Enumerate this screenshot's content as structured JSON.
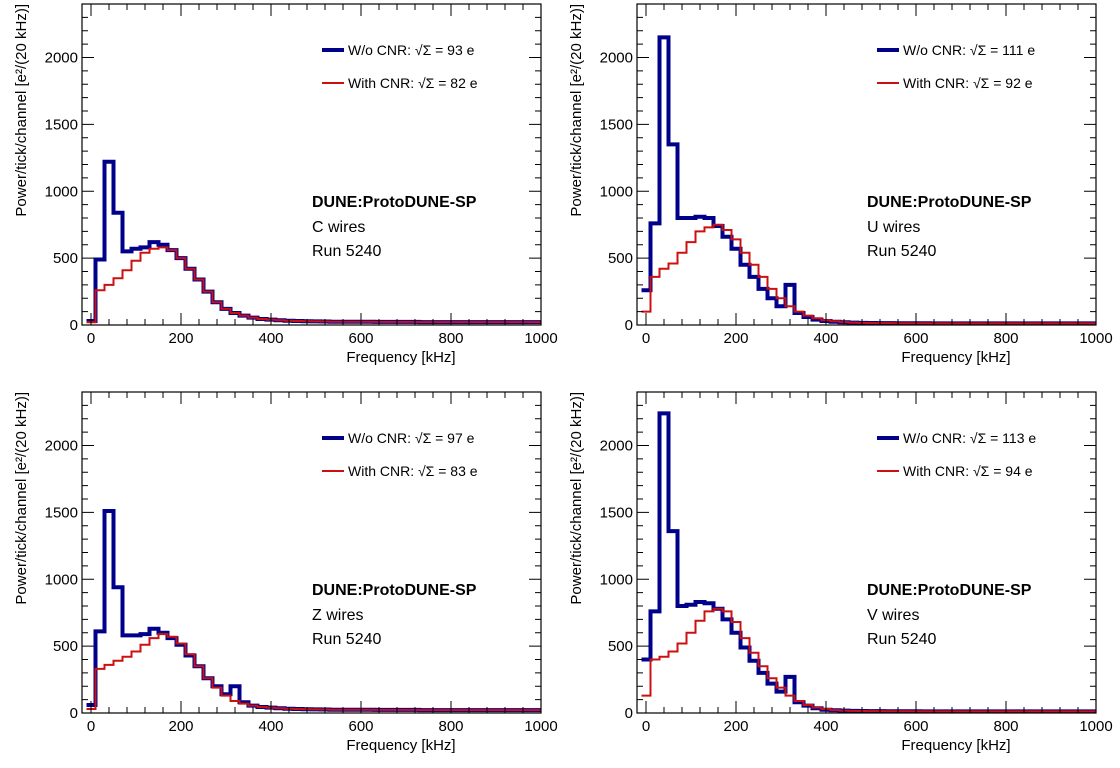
{
  "chart_data": [
    {
      "type": "line",
      "step": true,
      "experiment_label": "DUNE:ProtoDUNE-SP",
      "plane_label": "C wires",
      "run_label": "Run 5240",
      "xlabel": "Frequency [kHz]",
      "ylabel": "Power/tick/channel [e²/(20 kHz)]",
      "xlim": [
        -20,
        1000
      ],
      "ylim": [
        0,
        2400
      ],
      "xticks": [
        0,
        200,
        400,
        600,
        800,
        1000
      ],
      "yticks": [
        0,
        500,
        1000,
        1500,
        2000
      ],
      "bin_width": 20,
      "series": [
        {
          "name": "W/o CNR: √Σ = 93 e",
          "color": "#00008b",
          "values": [
            30,
            490,
            1220,
            840,
            550,
            570,
            580,
            620,
            600,
            560,
            500,
            420,
            340,
            250,
            170,
            120,
            90,
            70,
            55,
            45,
            40,
            35,
            32,
            30,
            28,
            27,
            26,
            25,
            25,
            24,
            24,
            24,
            23,
            23,
            23,
            23,
            23,
            22,
            22,
            22,
            22,
            22,
            22,
            22,
            22,
            22,
            22,
            22,
            22,
            22,
            22
          ]
        },
        {
          "name": "With CNR: √Σ = 82 e",
          "color": "#cc1010",
          "values": [
            20,
            260,
            300,
            350,
            410,
            480,
            540,
            570,
            580,
            560,
            500,
            420,
            340,
            250,
            170,
            120,
            90,
            70,
            55,
            45,
            40,
            35,
            32,
            30,
            28,
            27,
            26,
            25,
            25,
            24,
            24,
            24,
            23,
            23,
            23,
            23,
            23,
            22,
            22,
            22,
            22,
            22,
            22,
            22,
            22,
            22,
            22,
            22,
            22,
            22,
            22
          ]
        }
      ]
    },
    {
      "type": "line",
      "step": true,
      "experiment_label": "DUNE:ProtoDUNE-SP",
      "plane_label": "U wires",
      "run_label": "Run 5240",
      "xlabel": "Frequency [kHz]",
      "ylabel": "Power/tick/channel [e²/(20 kHz)]",
      "xlim": [
        -20,
        1000
      ],
      "ylim": [
        0,
        2400
      ],
      "xticks": [
        0,
        200,
        400,
        600,
        800,
        1000
      ],
      "yticks": [
        0,
        500,
        1000,
        1500,
        2000
      ],
      "bin_width": 20,
      "series": [
        {
          "name": "W/o CNR: √Σ = 111 e",
          "color": "#00008b",
          "values": [
            260,
            760,
            2150,
            1350,
            800,
            800,
            810,
            800,
            740,
            660,
            570,
            450,
            360,
            270,
            200,
            140,
            300,
            90,
            60,
            40,
            30,
            25,
            20,
            18,
            16,
            15,
            14,
            14,
            13,
            13,
            13,
            13,
            12,
            12,
            12,
            12,
            12,
            12,
            12,
            12,
            12,
            12,
            12,
            12,
            12,
            12,
            12,
            12,
            12,
            12,
            12
          ]
        },
        {
          "name": "With CNR: √Σ = 92 e",
          "color": "#cc1010",
          "values": [
            100,
            360,
            420,
            460,
            540,
            620,
            700,
            730,
            750,
            710,
            640,
            540,
            450,
            360,
            270,
            200,
            140,
            100,
            70,
            50,
            35,
            28,
            22,
            18,
            16,
            15,
            14,
            14,
            13,
            13,
            13,
            13,
            12,
            12,
            12,
            12,
            12,
            12,
            12,
            12,
            12,
            12,
            12,
            12,
            12,
            12,
            12,
            12,
            12,
            12,
            12
          ]
        }
      ]
    },
    {
      "type": "line",
      "step": true,
      "experiment_label": "DUNE:ProtoDUNE-SP",
      "plane_label": "Z wires",
      "run_label": "Run 5240",
      "xlabel": "Frequency [kHz]",
      "ylabel": "Power/tick/channel [e²/(20 kHz)]",
      "xlim": [
        -20,
        1000
      ],
      "ylim": [
        0,
        2400
      ],
      "xticks": [
        0,
        200,
        400,
        600,
        800,
        1000
      ],
      "yticks": [
        0,
        500,
        1000,
        1500,
        2000
      ],
      "bin_width": 20,
      "series": [
        {
          "name": "W/o CNR: √Σ = 97 e",
          "color": "#00008b",
          "values": [
            60,
            610,
            1510,
            940,
            580,
            580,
            590,
            630,
            600,
            560,
            510,
            430,
            350,
            260,
            200,
            140,
            200,
            80,
            55,
            45,
            40,
            35,
            32,
            30,
            28,
            27,
            26,
            25,
            25,
            24,
            24,
            24,
            23,
            23,
            23,
            23,
            23,
            22,
            22,
            22,
            22,
            22,
            22,
            22,
            22,
            22,
            22,
            22,
            22,
            22,
            22
          ]
        },
        {
          "name": "With CNR: √Σ = 83 e",
          "color": "#cc1010",
          "values": [
            30,
            330,
            360,
            390,
            420,
            460,
            510,
            560,
            590,
            570,
            520,
            440,
            350,
            260,
            190,
            130,
            90,
            70,
            55,
            45,
            40,
            35,
            32,
            30,
            28,
            27,
            26,
            25,
            25,
            24,
            24,
            24,
            23,
            23,
            23,
            23,
            23,
            22,
            22,
            22,
            22,
            22,
            22,
            22,
            22,
            22,
            22,
            22,
            22,
            22,
            22
          ]
        }
      ]
    },
    {
      "type": "line",
      "step": true,
      "experiment_label": "DUNE:ProtoDUNE-SP",
      "plane_label": "V wires",
      "run_label": "Run 5240",
      "xlabel": "Frequency [kHz]",
      "ylabel": "Power/tick/channel [e²/(20 kHz)]",
      "xlim": [
        -20,
        1000
      ],
      "ylim": [
        0,
        2400
      ],
      "xticks": [
        0,
        200,
        400,
        600,
        800,
        1000
      ],
      "yticks": [
        0,
        500,
        1000,
        1500,
        2000
      ],
      "bin_width": 20,
      "series": [
        {
          "name": "W/o CNR: √Σ = 113 e",
          "color": "#00008b",
          "values": [
            400,
            760,
            2240,
            1360,
            800,
            810,
            830,
            820,
            780,
            700,
            600,
            490,
            390,
            300,
            220,
            160,
            270,
            80,
            55,
            35,
            25,
            20,
            18,
            16,
            15,
            14,
            14,
            13,
            13,
            13,
            13,
            12,
            12,
            12,
            12,
            12,
            12,
            12,
            12,
            12,
            12,
            12,
            12,
            12,
            12,
            12,
            12,
            12,
            12,
            12,
            12
          ]
        },
        {
          "name": "With CNR: √Σ = 94 e",
          "color": "#cc1010",
          "values": [
            130,
            400,
            420,
            460,
            520,
            600,
            690,
            760,
            780,
            760,
            680,
            560,
            450,
            350,
            260,
            190,
            130,
            90,
            60,
            40,
            30,
            22,
            18,
            16,
            15,
            14,
            14,
            13,
            13,
            13,
            13,
            12,
            12,
            12,
            12,
            12,
            12,
            12,
            12,
            12,
            12,
            12,
            12,
            12,
            12,
            12,
            12,
            12,
            12,
            12,
            12
          ]
        }
      ]
    }
  ]
}
